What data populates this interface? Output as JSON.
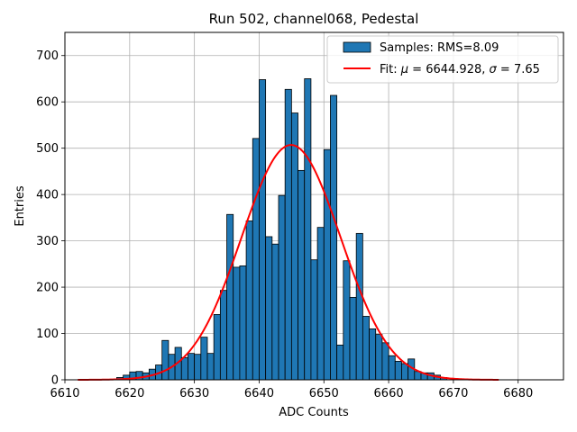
{
  "chart_data": {
    "type": "bar",
    "title": "Run 502, channel068, Pedestal",
    "xlabel": "ADC Counts",
    "ylabel": "Entries",
    "xlim": [
      6610,
      6687
    ],
    "ylim": [
      0,
      750
    ],
    "xticks": [
      6610,
      6620,
      6630,
      6640,
      6650,
      6660,
      6670,
      6680
    ],
    "yticks": [
      0,
      100,
      200,
      300,
      400,
      500,
      600,
      700
    ],
    "grid": true,
    "legend_position": "top-right",
    "bin_width": 1,
    "bar_color": "#1f77b4",
    "fit_color": "#ff0000",
    "histogram": {
      "name": "Samples: RMS=8.09",
      "bin_starts": [
        6618,
        6619,
        6620,
        6621,
        6622,
        6623,
        6624,
        6625,
        6626,
        6627,
        6628,
        6629,
        6630,
        6631,
        6632,
        6633,
        6634,
        6635,
        6636,
        6637,
        6638,
        6639,
        6640,
        6641,
        6642,
        6643,
        6644,
        6645,
        6646,
        6647,
        6648,
        6649,
        6650,
        6651,
        6652,
        6653,
        6654,
        6655,
        6656,
        6657,
        6658,
        6659,
        6660,
        6661,
        6662,
        6663,
        6664,
        6665,
        6666,
        6667,
        6668
      ],
      "values": [
        5,
        10,
        17,
        18,
        15,
        23,
        32,
        85,
        55,
        70,
        48,
        57,
        55,
        92,
        57,
        141,
        193,
        357,
        243,
        246,
        343,
        521,
        648,
        309,
        293,
        398,
        627,
        576,
        452,
        650,
        259,
        329,
        497,
        614,
        75,
        257,
        178,
        316,
        137,
        110,
        98,
        80,
        52,
        40,
        35,
        45,
        18,
        15,
        15,
        10,
        5
      ]
    },
    "fit": {
      "name_prefix": "Fit: ",
      "mu_symbol": "μ",
      "sigma_symbol": "σ",
      "mu": "6644.928",
      "sigma": "7.65",
      "mu_value": 6644.928,
      "sigma_value": 7.65,
      "amplitude": 507,
      "x_range": [
        6612,
        6677
      ]
    }
  }
}
